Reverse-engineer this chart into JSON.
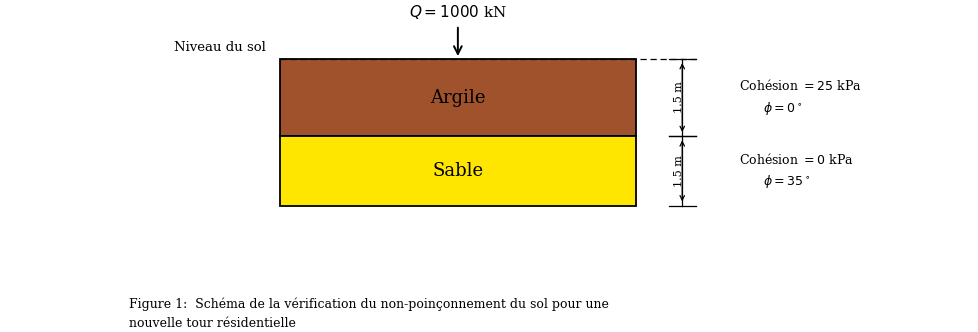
{
  "fig_width": 9.79,
  "fig_height": 3.32,
  "bg_color": "#ffffff",
  "argile_color": "#A0522D",
  "sable_color": "#FFE600",
  "border_color": "#000000",
  "load_label": "$Q = 1000$ kN",
  "niveau_label": "Niveau du sol",
  "argile_label": "Argile",
  "sable_label": "Sable",
  "cohesion1_line1": "Cohésion $= 25$ kPa",
  "cohesion1_line2": "$\\phi = 0^\\circ$",
  "cohesion2_line1": "Cohésion $= 0$ kPa",
  "cohesion2_line2": "$\\phi = 35^\\circ$",
  "dim1_label": "1.5 m",
  "dim2_label": "1.5 m",
  "caption_bold": "Figure 1:",
  "caption_rest": "  Schéma de la vérification du non-poinçonnement du sol pour une\nnouvelle tour résidentielle",
  "font_family": "DejaVu Serif"
}
